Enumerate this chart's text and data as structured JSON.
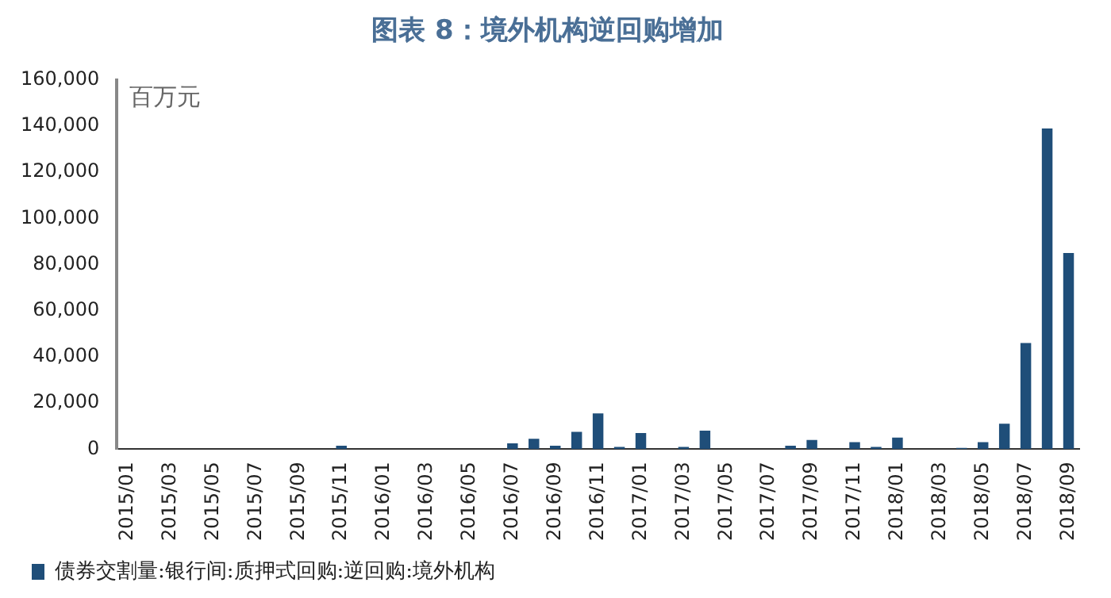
{
  "chart_data": {
    "type": "bar",
    "title": "图表 8：境外机构逆回购增加",
    "categories": [
      "2015/01",
      null,
      "2015/03",
      null,
      "2015/05",
      null,
      "2015/07",
      null,
      "2015/09",
      null,
      "2015/11",
      null,
      "2016/01",
      null,
      "2016/03",
      null,
      "2016/05",
      null,
      "2016/07",
      null,
      "2016/09",
      null,
      "2016/11",
      null,
      "2017/01",
      null,
      "2017/03",
      null,
      "2017/05",
      null,
      "2017/07",
      null,
      "2017/09",
      null,
      "2017/11",
      null,
      "2018/01",
      null,
      "2018/03",
      null,
      "2018/05",
      null,
      "2018/07",
      null,
      "2018/09"
    ],
    "series": [
      {
        "name": "债券交割量:银行间:质押式回购:逆回购:境外机构",
        "color": "#1f4e79",
        "values": [
          0,
          0,
          0,
          0,
          0,
          0,
          0,
          0,
          0,
          0,
          1500,
          0,
          0,
          0,
          0,
          0,
          0,
          0,
          2500,
          4500,
          1500,
          7500,
          15500,
          1000,
          7000,
          0,
          1000,
          8000,
          0,
          0,
          0,
          1500,
          4000,
          0,
          3000,
          1000,
          5000,
          0,
          0,
          500,
          3000,
          11000,
          46000,
          139000,
          85000
        ]
      }
    ],
    "ylim": [
      0,
      160000
    ],
    "yticks": [
      0,
      {
        "value": 20000,
        "label": "20,000"
      },
      {
        "value": 40000,
        "label": "40,000"
      },
      {
        "value": 60000,
        "label": "60,000"
      },
      {
        "value": 80000,
        "label": "80,000"
      },
      {
        "value": 100000,
        "label": "100,000"
      },
      {
        "value": 120000,
        "label": "120,000"
      },
      {
        "value": 140000,
        "label": "140,000"
      },
      {
        "value": 160000,
        "label": "160,000"
      }
    ],
    "annotations": [
      "百万元"
    ],
    "grid": false,
    "legend": "bottom"
  }
}
